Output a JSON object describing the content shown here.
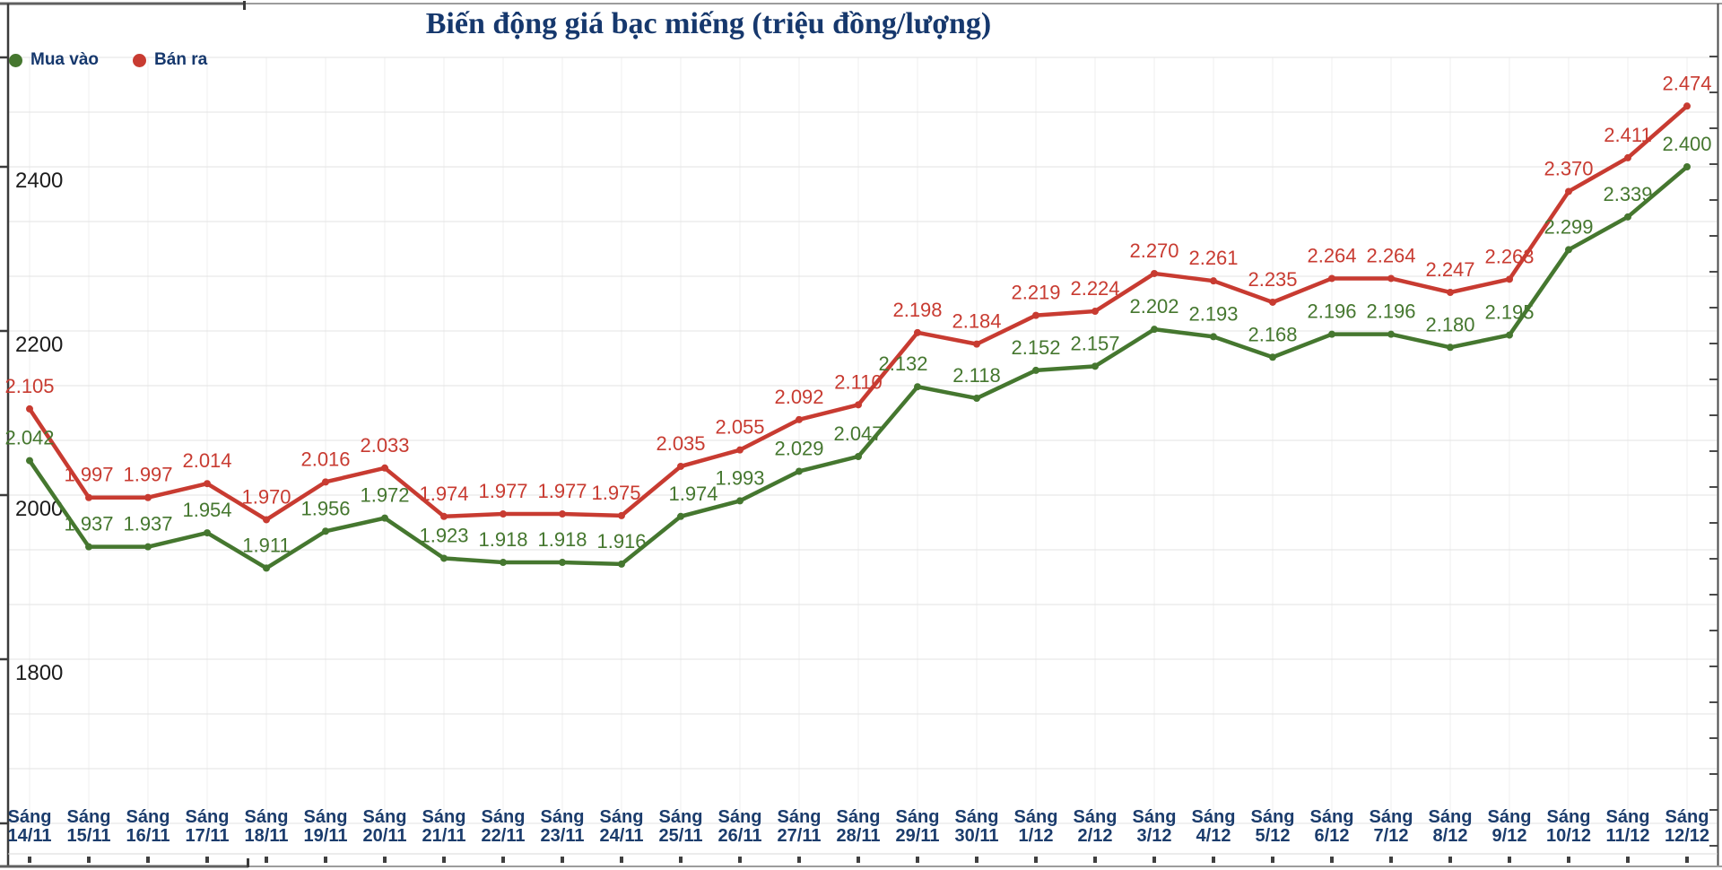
{
  "page": {
    "title": "Biến động giá bạc miếng (triệu đồng/lượng)"
  },
  "legend": {
    "items": [
      {
        "label": "Mua vào",
        "color": "#45772f"
      },
      {
        "label": "Bán ra",
        "color": "#c83b31"
      }
    ]
  },
  "chart_data": {
    "type": "line",
    "title": "Biến động giá bạc miếng (triệu đồng/lượng)",
    "categories": [
      "Sáng 14/11",
      "Sáng 15/11",
      "Sáng 16/11",
      "Sáng 17/11",
      "Sáng 18/11",
      "Sáng 19/11",
      "Sáng 20/11",
      "Sáng 21/11",
      "Sáng 22/11",
      "Sáng 23/11",
      "Sáng 24/11",
      "Sáng 25/11",
      "Sáng 26/11",
      "Sáng 27/11",
      "Sáng 28/11",
      "Sáng 29/11",
      "Sáng 30/11",
      "Sáng 1/12",
      "Sáng 2/12",
      "Sáng 3/12",
      "Sáng 4/12",
      "Sáng 5/12",
      "Sáng 6/12",
      "Sáng 7/12",
      "Sáng 8/12",
      "Sáng 9/12",
      "Sáng 10/12",
      "Sáng 11/12",
      "Sáng 12/12"
    ],
    "series": [
      {
        "name": "Mua vào",
        "color": "#45772f",
        "values": [
          2042,
          1937,
          1937,
          1954,
          1911,
          1956,
          1972,
          1923,
          1918,
          1918,
          1916,
          1974,
          1993,
          2029,
          2047,
          2132,
          2118,
          2152,
          2157,
          2202,
          2193,
          2168,
          2196,
          2196,
          2180,
          2195,
          2299,
          2339,
          2400
        ],
        "labels": [
          "2.042",
          "1.937",
          "1.937",
          "1.954",
          "1.911",
          "1.956",
          "1.972",
          "1.923",
          "1.918",
          "1.918",
          "1.916",
          "1.974",
          "1.993",
          "2.029",
          "2.047",
          "2.132",
          "2.118",
          "2.152",
          "2.157",
          "2.202",
          "2.193",
          "2.168",
          "2.196",
          "2.196",
          "2.180",
          "2.195",
          "2.299",
          "2.339",
          "2.400"
        ]
      },
      {
        "name": "Bán ra",
        "color": "#c83b31",
        "values": [
          2105,
          1997,
          1997,
          2014,
          1970,
          2016,
          2033,
          1974,
          1977,
          1977,
          1975,
          2035,
          2055,
          2092,
          2110,
          2198,
          2184,
          2219,
          2224,
          2270,
          2261,
          2235,
          2264,
          2264,
          2247,
          2263,
          2370,
          2411,
          2474
        ],
        "labels": [
          "2.105",
          "1.997",
          "1.997",
          "2.014",
          "1.970",
          "2.016",
          "2.033",
          "1.974",
          "1.977",
          "1.977",
          "1.975",
          "2.035",
          "2.055",
          "2.092",
          "2.110",
          "2.198",
          "2.184",
          "2.219",
          "2.224",
          "2.270",
          "2.261",
          "2.235",
          "2.264",
          "2.264",
          "2.247",
          "2.263",
          "2.370",
          "2.411",
          "2.474"
        ]
      }
    ],
    "y_axis": {
      "tick_labels": [
        "2400",
        "2200",
        "2000",
        "1800"
      ],
      "tick_values": [
        2400,
        2200,
        2000,
        1800
      ],
      "range": [
        1600,
        2533
      ]
    },
    "grid": true,
    "legend_position": "top-left"
  }
}
